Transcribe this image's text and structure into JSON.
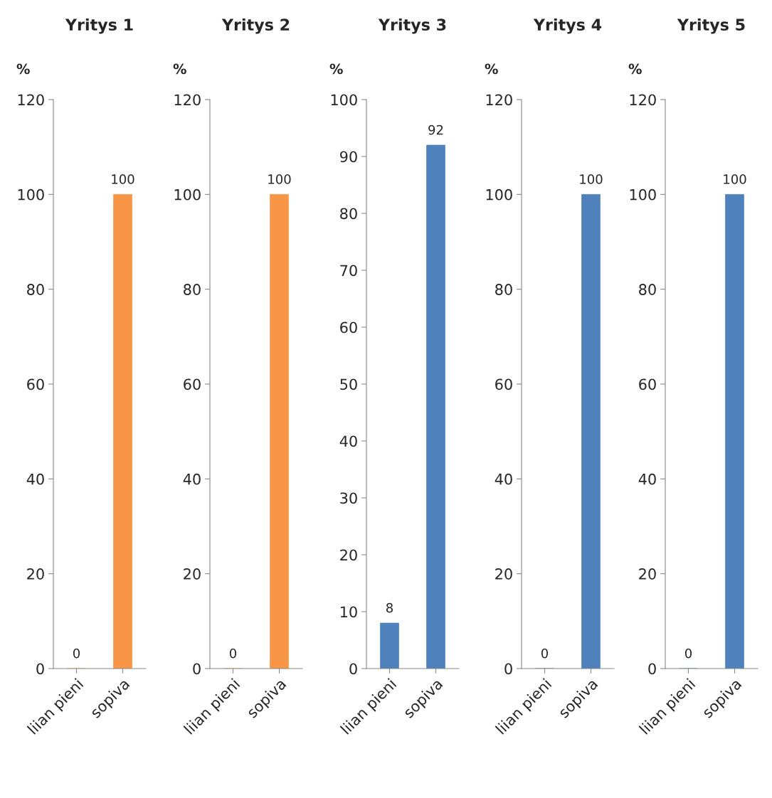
{
  "chart_data": [
    {
      "type": "bar",
      "title": "Yritys 1",
      "ylabel": "%",
      "categories": [
        "liian pieni",
        "sopiva"
      ],
      "values": [
        0,
        100
      ],
      "color": "#f79646",
      "ylim": [
        0,
        120
      ],
      "yticks": [
        0,
        20,
        40,
        60,
        80,
        100,
        120
      ],
      "data_labels": true,
      "grid": false,
      "legend": false
    },
    {
      "type": "bar",
      "title": "Yritys 2",
      "ylabel": "%",
      "categories": [
        "liian pieni",
        "sopiva"
      ],
      "values": [
        0,
        100
      ],
      "color": "#f79646",
      "ylim": [
        0,
        120
      ],
      "yticks": [
        0,
        20,
        40,
        60,
        80,
        100,
        120
      ],
      "data_labels": true,
      "grid": false,
      "legend": false
    },
    {
      "type": "bar",
      "title": "Yritys 3",
      "ylabel": "%",
      "categories": [
        "liian pieni",
        "sopiva"
      ],
      "values": [
        8,
        92
      ],
      "color": "#4f81bd",
      "ylim": [
        0,
        100
      ],
      "yticks": [
        0,
        10,
        20,
        30,
        40,
        50,
        60,
        70,
        80,
        90,
        100
      ],
      "data_labels": true,
      "grid": false,
      "legend": false
    },
    {
      "type": "bar",
      "title": "Yritys 4",
      "ylabel": "%",
      "categories": [
        "liian pieni",
        "sopiva"
      ],
      "values": [
        0,
        100
      ],
      "color": "#4f81bd",
      "ylim": [
        0,
        120
      ],
      "yticks": [
        0,
        20,
        40,
        60,
        80,
        100,
        120
      ],
      "data_labels": true,
      "grid": false,
      "legend": false
    },
    {
      "type": "bar",
      "title": "Yritys 5",
      "ylabel": "%",
      "categories": [
        "liian pieni",
        "sopiva"
      ],
      "values": [
        0,
        100
      ],
      "color": "#4f81bd",
      "ylim": [
        0,
        120
      ],
      "yticks": [
        0,
        20,
        40,
        60,
        80,
        100,
        120
      ],
      "data_labels": true,
      "grid": false,
      "legend": false
    }
  ]
}
